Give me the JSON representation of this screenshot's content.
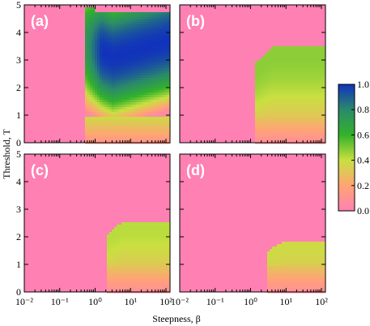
{
  "chart_data": {
    "type": "heatmap",
    "xlabel": "Steepness, β",
    "ylabel": "Threshold, T",
    "x_scale": "log",
    "xlim": [
      0.01,
      130
    ],
    "ylim": [
      0,
      5
    ],
    "x_ticks": [
      0.01,
      0.1,
      1,
      10,
      100
    ],
    "x_tick_labels": [
      "10⁻²",
      "10⁻¹",
      "10⁰",
      "10¹",
      "10²"
    ],
    "y_ticks": [
      0,
      1,
      2,
      3,
      4,
      5
    ],
    "y_tick_labels": [
      "0",
      "1",
      "2",
      "3",
      "4",
      "5"
    ],
    "colorbar": {
      "range": [
        0,
        1
      ],
      "ticks": [
        0,
        0.2,
        0.4,
        0.6,
        0.8,
        1.0
      ],
      "tick_labels": [
        "0.0",
        "0.2",
        "0.4",
        "0.6",
        "0.8",
        "1.0"
      ],
      "colors": [
        "#ff80b3",
        "#ffa573",
        "#c8e040",
        "#33b22a",
        "#2a8a6a",
        "#1133bb"
      ]
    },
    "background_value_color": "#ff80b3",
    "panels": [
      {
        "label": "(a)",
        "onset_beta": 0.5,
        "max_threshold": 4.9,
        "peak_value": 1.0
      },
      {
        "label": "(b)",
        "onset_beta": 1.3,
        "max_threshold": 3.5,
        "peak_value": 0.48
      },
      {
        "label": "(c)",
        "onset_beta": 2.2,
        "max_threshold": 2.55,
        "peak_value": 0.42
      },
      {
        "label": "(d)",
        "onset_beta": 3.0,
        "max_threshold": 1.8,
        "peak_value": 0.38
      }
    ]
  }
}
